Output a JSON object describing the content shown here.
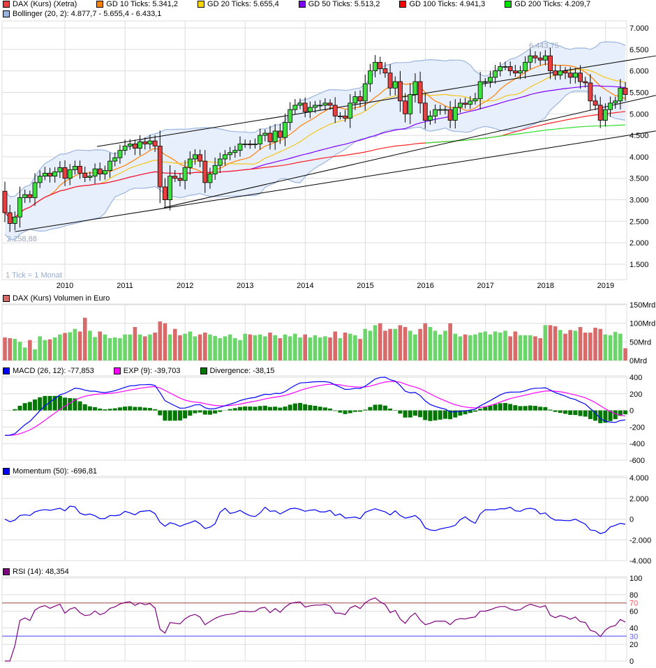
{
  "legend_main": [
    {
      "label": "DAX (Kurs) (Xetra)",
      "color": "#e84040"
    },
    {
      "label": "GD 10 Ticks: 5.341,2",
      "color": "#ff7f00"
    },
    {
      "label": "GD 20 Ticks: 5.655,4",
      "color": "#ffd700"
    },
    {
      "label": "GD 50 Ticks: 5.513,2",
      "color": "#8000ff"
    },
    {
      "label": "GD 100 Ticks: 4.941,3",
      "color": "#ff0000"
    },
    {
      "label": "GD 200 Ticks: 4.209,7",
      "color": "#00e000"
    }
  ],
  "legend_bollinger": {
    "label": "Bollinger (20, 2): 4.877,7 - 5.655,4 - 6.433,1",
    "color": "#9ab4e0"
  },
  "legend_volume": {
    "label": "DAX (Kurs) Volumen in Euro",
    "color": "#d96a6a"
  },
  "legend_macd": [
    {
      "label": "MACD (26, 12): -77,853",
      "color": "#0000ff"
    },
    {
      "label": "EXP (9): -39,703",
      "color": "#ff00ff"
    },
    {
      "label": "Divergence: -38,15",
      "color": "#007700"
    }
  ],
  "legend_momentum": {
    "label": "Momentum (50): -696,81",
    "color": "#0000ff"
  },
  "legend_rsi": {
    "label": "RSI (14): 48,354",
    "color": "#800080"
  },
  "annotations": {
    "tick_note": "1 Tick = 1 Monat",
    "low_label": "2.258,88",
    "high_label": "6.443,75"
  },
  "chart_data": [
    {
      "type": "candlestick",
      "title": "DAX (Kurs) (Xetra)",
      "start": "2009-01",
      "interval": "month",
      "first_open": 3200,
      "closes": [
        2700,
        2450,
        2600,
        3050,
        3120,
        3050,
        3400,
        3550,
        3620,
        3550,
        3650,
        3750,
        3500,
        3700,
        3780,
        3620,
        3520,
        3550,
        3720,
        3600,
        3680,
        3900,
        3980,
        4150,
        4250,
        4300,
        4200,
        4350,
        4300,
        4370,
        4250,
        3300,
        3000,
        3550,
        3500,
        3450,
        3750,
        3950,
        4050,
        3900,
        3400,
        3600,
        3800,
        3950,
        4050,
        4100,
        4150,
        4300,
        4300,
        4280,
        4300,
        4500,
        4550,
        4350,
        4600,
        4450,
        4800,
        5100,
        5200,
        5250,
        5050,
        5150,
        5200,
        5200,
        5250,
        5200,
        4950,
        4950,
        4900,
        5250,
        5400,
        5300,
        5700,
        6000,
        6200,
        6050,
        5950,
        5600,
        5750,
        5300,
        5000,
        5450,
        5750,
        5250,
        4850,
        4950,
        5100,
        5100,
        5100,
        4850,
        5150,
        5250,
        5220,
        5300,
        5350,
        5750,
        5750,
        5850,
        6000,
        6100,
        6100,
        6000,
        5950,
        6000,
        6200,
        6350,
        6300,
        6250,
        6350,
        6000,
        5900,
        6000,
        5950,
        5850,
        5950,
        5750,
        5720,
        5300,
        5200,
        4850,
        5100,
        5250,
        5300,
        5600,
        5450
      ],
      "x_ticks": [
        "2010",
        "2011",
        "2012",
        "2013",
        "2014",
        "2015",
        "2016",
        "2017",
        "2018",
        "2019"
      ],
      "y_ticks": [
        "7.000",
        "6.500",
        "6.000",
        "5.500",
        "5.000",
        "4.500",
        "4.000",
        "3.500",
        "3.000",
        "2.500",
        "2.000",
        "1.500"
      ],
      "ylim": [
        1500,
        7000
      ],
      "moving_averages": [
        10,
        20,
        50,
        100,
        200
      ],
      "bollinger": {
        "period": 20,
        "k": 2
      },
      "trend_lines": [
        {
          "from": [
            2,
            2258
          ],
          "to": [
            130.1,
            4600
          ]
        },
        {
          "from": [
            31.8,
            2818
          ],
          "to": [
            130.1,
            5430
          ]
        },
        {
          "from": [
            18.4,
            4240
          ],
          "to": [
            130.1,
            6350
          ]
        }
      ]
    },
    {
      "type": "bar",
      "title": "DAX (Kurs) Volumen in Euro",
      "unit": "Mrd",
      "values": [
        62,
        60,
        58,
        50,
        35,
        55,
        30,
        65,
        55,
        57,
        62,
        70,
        74,
        76,
        85,
        78,
        115,
        80,
        63,
        78,
        70,
        60,
        62,
        60,
        70,
        70,
        90,
        70,
        65,
        70,
        75,
        105,
        100,
        70,
        85,
        68,
        72,
        78,
        65,
        70,
        75,
        70,
        66,
        60,
        65,
        70,
        60,
        55,
        72,
        70,
        68,
        70,
        65,
        75,
        68,
        60,
        70,
        65,
        72,
        62,
        70,
        62,
        68,
        62,
        65,
        62,
        78,
        60,
        75,
        72,
        68,
        58,
        85,
        80,
        95,
        100,
        80,
        85,
        85,
        95,
        90,
        80,
        70,
        85,
        100,
        90,
        80,
        70,
        80,
        100,
        72,
        65,
        70,
        68,
        70,
        75,
        78,
        70,
        78,
        75,
        80,
        65,
        78,
        68,
        68,
        68,
        65,
        60,
        95,
        95,
        92,
        82,
        72,
        82,
        80,
        90,
        75,
        75,
        88,
        85,
        70,
        68,
        77,
        72,
        33
      ],
      "y_ticks": [
        "150Mrd",
        "100Mrd",
        "50Mrd",
        "0Mrd"
      ],
      "ylim": [
        0,
        150
      ]
    },
    {
      "type": "line",
      "title": "MACD (26, 12)",
      "y_ticks": [
        "400",
        "200",
        "0",
        "-200",
        "-400",
        "-600"
      ],
      "ylim": [
        -600,
        400
      ]
    },
    {
      "type": "line",
      "title": "Momentum (50)",
      "y_ticks": [
        "4.000",
        "2.000",
        "0",
        "-2.000",
        "-4.000"
      ],
      "ylim": [
        -4000,
        4000
      ]
    },
    {
      "type": "line",
      "title": "RSI (14)",
      "y_ticks": [
        "100",
        "80",
        "60",
        "40",
        "20",
        "0"
      ],
      "levels": [
        "70",
        "30"
      ],
      "ylim": [
        0,
        100
      ]
    }
  ]
}
